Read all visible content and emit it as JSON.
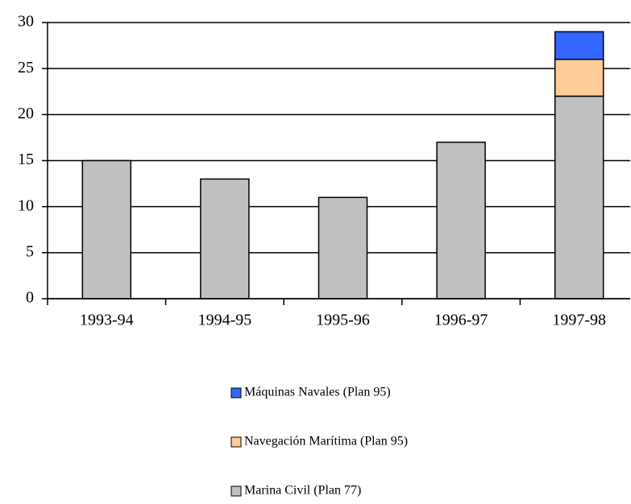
{
  "chart_data": {
    "type": "stacked_bar",
    "categories": [
      "1993-94",
      "1994-95",
      "1995-96",
      "1996-97",
      "1997-98"
    ],
    "series": [
      {
        "name": "Marina Civil (Plan 77)",
        "color": "#c0c0c0",
        "values": [
          15,
          13,
          11,
          17,
          22
        ]
      },
      {
        "name": "Navegación Marítima (Plan 95)",
        "color": "#ffcc99",
        "values": [
          null,
          null,
          null,
          null,
          4
        ]
      },
      {
        "name": "Máquinas Navales (Plan 95)",
        "color": "#3366ff",
        "values": [
          null,
          null,
          null,
          null,
          3
        ]
      }
    ],
    "ylim": [
      0,
      30
    ],
    "yticks": [
      0,
      5,
      10,
      15,
      20,
      25,
      30
    ],
    "grid": true,
    "legend": "bottom"
  }
}
